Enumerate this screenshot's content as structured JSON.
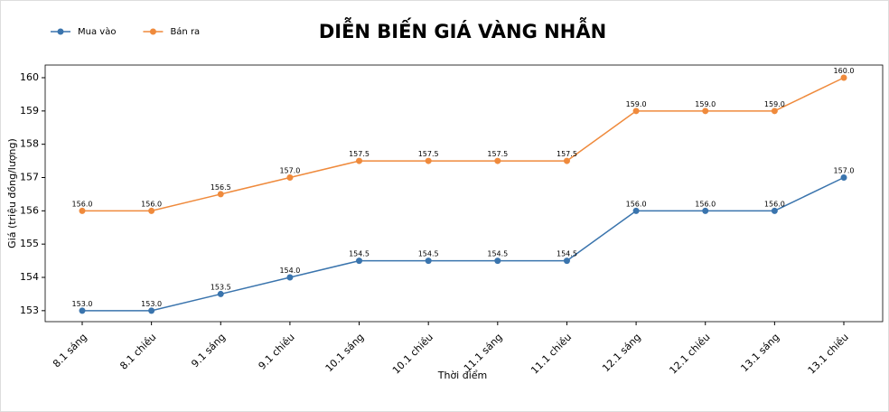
{
  "chart_data": {
    "type": "line",
    "title": "DIỄN BIẾN GIÁ VÀNG NHẪN",
    "x_label": "Thời điểm",
    "y_label": "Giá (triệu đồng/lượng)",
    "categories": [
      "8.1 sáng",
      "8.1 chiều",
      "9.1 sáng",
      "9.1 chiều",
      "10.1 sáng",
      "10.1 chiều",
      "11.1 sáng",
      "11.1 chiều",
      "12.1 sáng",
      "12.1 chiều",
      "13.1 sáng",
      "13.1 chiều"
    ],
    "series": [
      {
        "name": "Mua vào",
        "color": "#3a74ad",
        "values": [
          153,
          153,
          153.5,
          154,
          154.5,
          154.5,
          154.5,
          154.5,
          156,
          156,
          156,
          157
        ],
        "value_labels": [
          "153.0",
          "153.0",
          "153.5",
          "154.0",
          "154.5",
          "154.5",
          "154.5",
          "154.5",
          "156.0",
          "156.0",
          "156.0",
          "157.0"
        ]
      },
      {
        "name": "Bán ra",
        "color": "#ef8a3c",
        "values": [
          156,
          156,
          156.5,
          157,
          157.5,
          157.5,
          157.5,
          157.5,
          159,
          159,
          159,
          160
        ],
        "value_labels": [
          "156.0",
          "156.0",
          "156.5",
          "157.0",
          "157.5",
          "157.5",
          "157.5",
          "157.5",
          "159.0",
          "159.0",
          "159.0",
          "160.0"
        ]
      }
    ],
    "ylim": [
      152.67,
      160.38
    ],
    "yticks": [
      153,
      154,
      155,
      156,
      157,
      158,
      159,
      160
    ],
    "legend": "upper left"
  }
}
